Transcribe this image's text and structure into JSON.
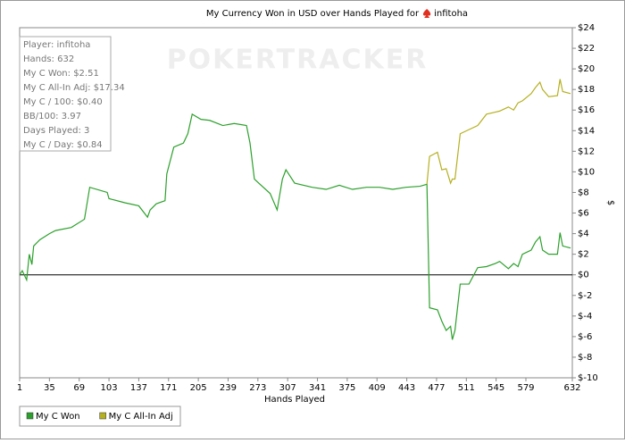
{
  "chart_data": {
    "type": "line",
    "title": "My Currency Won in USD over Hands Played for",
    "player": "infitoha",
    "watermark": "POKERTRACKER",
    "x_label": "Hands Played",
    "y_label": "$",
    "stats": [
      "Player: infitoha",
      "Hands: 632",
      "My C Won: $2.51",
      "My C All-In Adj: $17.34",
      "My C / 100: $0.40",
      "BB/100: 3.97",
      "Days Played: 3",
      "My C / Day: $0.84"
    ],
    "x": [
      1,
      4,
      9,
      12,
      15,
      17,
      24,
      35,
      42,
      60,
      75,
      81,
      101,
      103,
      121,
      137,
      147,
      150,
      157,
      167,
      169,
      177,
      188,
      193,
      198,
      208,
      218,
      233,
      246,
      260,
      264,
      269,
      274,
      287,
      295,
      301,
      305,
      315,
      335,
      351,
      366,
      381,
      397,
      412,
      427,
      442,
      458,
      466,
      469,
      478,
      483,
      488,
      493,
      495,
      498,
      504,
      514,
      524,
      534,
      544,
      549,
      559,
      565,
      570,
      575,
      585,
      590,
      595,
      598,
      605,
      615,
      618,
      621,
      630
    ],
    "series": [
      {
        "name": "My C Won",
        "color": "#2ca02c",
        "values": [
          0,
          0.4,
          -0.5,
          2,
          1,
          2.8,
          3.4,
          4,
          4.3,
          4.6,
          5.4,
          8.5,
          8,
          7.4,
          7,
          6.7,
          5.6,
          6.3,
          6.9,
          7.2,
          9.8,
          12.4,
          12.8,
          13.7,
          15.6,
          15.1,
          15,
          14.5,
          14.7,
          14.5,
          12.8,
          9.3,
          8.9,
          7.9,
          6.3,
          9.3,
          10.2,
          8.9,
          8.5,
          8.3,
          8.7,
          8.3,
          8.5,
          8.5,
          8.3,
          8.5,
          8.6,
          8.8,
          -3.2,
          -3.4,
          -4.5,
          -5.4,
          -5,
          -6.3,
          -5.4,
          -0.9,
          -0.9,
          0.7,
          0.8,
          1.1,
          1.3,
          0.6,
          1.1,
          0.8,
          2,
          2.4,
          3.2,
          3.7,
          2.4,
          2,
          2,
          4.1,
          2.8,
          2.6
        ]
      },
      {
        "name": "My C All-In Adj",
        "color": "#b5b020",
        "values": [
          null,
          null,
          null,
          null,
          null,
          null,
          null,
          null,
          null,
          null,
          null,
          null,
          null,
          null,
          null,
          null,
          null,
          null,
          null,
          null,
          null,
          null,
          null,
          null,
          null,
          null,
          null,
          null,
          null,
          null,
          null,
          null,
          null,
          null,
          null,
          null,
          null,
          null,
          null,
          null,
          null,
          null,
          null,
          null,
          null,
          null,
          null,
          8.8,
          11.5,
          11.9,
          10.2,
          10.3,
          8.9,
          9.3,
          9.3,
          13.7,
          14.1,
          14.5,
          15.6,
          15.8,
          15.9,
          16.3,
          16,
          16.7,
          16.9,
          17.6,
          18.2,
          18.7,
          18,
          17.3,
          17.4,
          19,
          17.8,
          17.6
        ]
      }
    ],
    "xlim": [
      1,
      632
    ],
    "xticks": [
      1,
      35,
      69,
      103,
      137,
      171,
      205,
      239,
      273,
      307,
      341,
      375,
      409,
      443,
      477,
      511,
      545,
      579,
      632
    ],
    "ylim": [
      -10,
      24
    ],
    "yticks": [
      {
        "value": -10,
        "label": "$-10"
      },
      {
        "value": -8,
        "label": "$-8"
      },
      {
        "value": -6,
        "label": "$-6"
      },
      {
        "value": -4,
        "label": "$-4"
      },
      {
        "value": -2,
        "label": "$-2"
      },
      {
        "value": 0,
        "label": "$0"
      },
      {
        "value": 2,
        "label": "$2"
      },
      {
        "value": 4,
        "label": "$4"
      },
      {
        "value": 6,
        "label": "$6"
      },
      {
        "value": 8,
        "label": "$8"
      },
      {
        "value": 10,
        "label": "$10"
      },
      {
        "value": 12,
        "label": "$12"
      },
      {
        "value": 14,
        "label": "$14"
      },
      {
        "value": 16,
        "label": "$16"
      },
      {
        "value": 18,
        "label": "$18"
      },
      {
        "value": 20,
        "label": "$20"
      },
      {
        "value": 22,
        "label": "$22"
      },
      {
        "value": 24,
        "label": "$24"
      }
    ],
    "grid": false
  }
}
